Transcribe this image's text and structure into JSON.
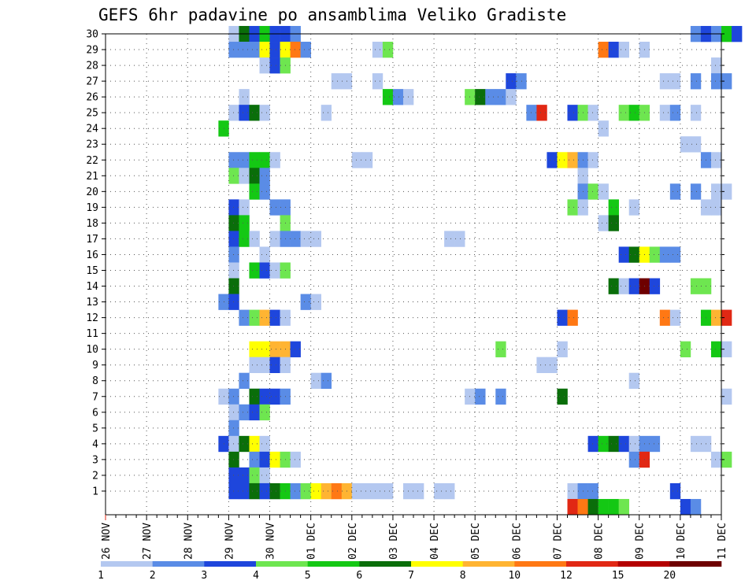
{
  "chart_data": {
    "type": "heatmap",
    "title": "GEFS 6hr padavine po ansamblima Veliko Gradiste",
    "xlabel": "",
    "ylabel": "",
    "x_tick_labels": [
      "26 NOV",
      "27 NOV",
      "28 NOV",
      "29 NOV",
      "30 NOV",
      "01 DEC",
      "02 DEC",
      "03 DEC",
      "04 DEC",
      "05 DEC",
      "06 DEC",
      "07 DEC",
      "08 DEC",
      "09 DEC",
      "10 DEC",
      "11 DEC"
    ],
    "x_range_days": [
      0,
      15
    ],
    "steps_per_day": 4,
    "y_tick_labels": [
      "1",
      "2",
      "3",
      "4",
      "5",
      "6",
      "7",
      "8",
      "9",
      "10",
      "11",
      "12",
      "13",
      "14",
      "15",
      "16",
      "17",
      "18",
      "19",
      "20",
      "21",
      "22",
      "23",
      "24",
      "25",
      "26",
      "27",
      "28",
      "29",
      "30"
    ],
    "y_range": [
      0,
      30
    ],
    "grid": "dotted",
    "colorbar": {
      "labels": [
        "1",
        "2",
        "3",
        "4",
        "5",
        "6",
        "7",
        "8",
        "10",
        "12",
        "15",
        "20"
      ],
      "colors": [
        "#b4c8f0",
        "#5a8ce6",
        "#1e46dc",
        "#6ee650",
        "#14c814",
        "#0a6e0a",
        "#ffff00",
        "#ffb432",
        "#ff7814",
        "#e12814",
        "#b40000",
        "#6e0000"
      ]
    },
    "level_colors": [
      "#b4c8f0",
      "#5a8ce6",
      "#1e46dc",
      "#6ee650",
      "#14c814",
      "#0a6e0a",
      "#ffff00",
      "#ffb432",
      "#ff7814",
      "#e12814",
      "#b40000",
      "#6e0000"
    ],
    "cells_note": "Each entry: [member, time_step_index from 26 NOV 00Z (6-hourly), start_level, run_length, level_step]",
    "cells": [
      [
        30,
        12,
        1,
        1,
        0
      ],
      [
        30,
        13,
        6,
        1,
        0
      ],
      [
        30,
        14,
        3,
        1,
        0
      ],
      [
        30,
        15,
        5,
        1,
        0
      ],
      [
        30,
        16,
        3,
        2,
        0
      ],
      [
        30,
        18,
        2,
        1,
        0
      ],
      [
        30,
        57,
        2,
        1,
        0
      ],
      [
        30,
        58,
        3,
        1,
        0
      ],
      [
        30,
        59,
        2,
        1,
        0
      ],
      [
        30,
        60,
        5,
        1,
        0
      ],
      [
        30,
        61,
        3,
        1,
        0
      ],
      [
        29,
        12,
        2,
        3,
        0
      ],
      [
        29,
        15,
        7,
        1,
        0
      ],
      [
        29,
        16,
        3,
        1,
        0
      ],
      [
        29,
        17,
        7,
        1,
        0
      ],
      [
        29,
        18,
        9,
        1,
        0
      ],
      [
        29,
        19,
        2,
        1,
        0
      ],
      [
        29,
        26,
        1,
        1,
        0
      ],
      [
        29,
        27,
        4,
        1,
        0
      ],
      [
        29,
        48,
        9,
        1,
        0
      ],
      [
        29,
        49,
        3,
        1,
        0
      ],
      [
        29,
        50,
        1,
        1,
        0
      ],
      [
        29,
        52,
        1,
        1,
        0
      ],
      [
        28,
        15,
        1,
        1,
        0
      ],
      [
        28,
        16,
        3,
        1,
        0
      ],
      [
        28,
        17,
        4,
        1,
        0
      ],
      [
        28,
        59,
        1,
        1,
        0
      ],
      [
        27,
        22,
        1,
        2,
        0
      ],
      [
        27,
        26,
        1,
        1,
        0
      ],
      [
        27,
        39,
        3,
        1,
        0
      ],
      [
        27,
        40,
        2,
        1,
        0
      ],
      [
        27,
        54,
        1,
        2,
        0
      ],
      [
        27,
        57,
        2,
        1,
        0
      ],
      [
        27,
        59,
        2,
        2,
        0
      ],
      [
        26,
        13,
        1,
        1,
        0
      ],
      [
        26,
        27,
        5,
        1,
        0
      ],
      [
        26,
        28,
        2,
        1,
        0
      ],
      [
        26,
        29,
        1,
        1,
        0
      ],
      [
        26,
        35,
        4,
        1,
        0
      ],
      [
        26,
        36,
        6,
        1,
        0
      ],
      [
        26,
        37,
        2,
        2,
        0
      ],
      [
        26,
        39,
        1,
        1,
        0
      ],
      [
        25,
        12,
        1,
        1,
        0
      ],
      [
        25,
        13,
        3,
        1,
        0
      ],
      [
        25,
        14,
        6,
        1,
        0
      ],
      [
        25,
        15,
        1,
        1,
        0
      ],
      [
        25,
        21,
        1,
        1,
        0
      ],
      [
        25,
        41,
        2,
        1,
        0
      ],
      [
        25,
        42,
        10,
        1,
        0
      ],
      [
        25,
        45,
        3,
        1,
        0
      ],
      [
        25,
        46,
        4,
        1,
        0
      ],
      [
        25,
        47,
        1,
        1,
        0
      ],
      [
        25,
        50,
        4,
        1,
        0
      ],
      [
        25,
        51,
        5,
        1,
        0
      ],
      [
        25,
        52,
        4,
        1,
        0
      ],
      [
        25,
        54,
        1,
        1,
        0
      ],
      [
        25,
        55,
        2,
        1,
        0
      ],
      [
        25,
        57,
        1,
        1,
        0
      ],
      [
        24,
        11,
        5,
        1,
        0
      ],
      [
        24,
        48,
        1,
        1,
        0
      ],
      [
        23,
        56,
        1,
        2,
        0
      ],
      [
        22,
        12,
        2,
        2,
        0
      ],
      [
        22,
        14,
        5,
        2,
        0
      ],
      [
        22,
        16,
        1,
        1,
        0
      ],
      [
        22,
        24,
        1,
        2,
        0
      ],
      [
        22,
        43,
        3,
        1,
        0
      ],
      [
        22,
        44,
        7,
        1,
        0
      ],
      [
        22,
        45,
        8,
        1,
        0
      ],
      [
        22,
        46,
        2,
        1,
        0
      ],
      [
        22,
        47,
        1,
        1,
        0
      ],
      [
        22,
        58,
        2,
        1,
        0
      ],
      [
        22,
        59,
        1,
        1,
        0
      ],
      [
        21,
        12,
        4,
        1,
        0
      ],
      [
        21,
        13,
        1,
        1,
        0
      ],
      [
        21,
        14,
        6,
        1,
        0
      ],
      [
        21,
        15,
        2,
        1,
        0
      ],
      [
        21,
        46,
        1,
        1,
        0
      ],
      [
        20,
        14,
        5,
        1,
        0
      ],
      [
        20,
        15,
        2,
        1,
        0
      ],
      [
        20,
        46,
        2,
        1,
        0
      ],
      [
        20,
        47,
        4,
        1,
        0
      ],
      [
        20,
        48,
        1,
        1,
        0
      ],
      [
        20,
        55,
        2,
        1,
        0
      ],
      [
        20,
        57,
        2,
        1,
        0
      ],
      [
        20,
        59,
        1,
        2,
        0
      ],
      [
        19,
        12,
        3,
        1,
        0
      ],
      [
        19,
        13,
        1,
        1,
        0
      ],
      [
        19,
        16,
        2,
        2,
        0
      ],
      [
        19,
        45,
        4,
        1,
        0
      ],
      [
        19,
        46,
        1,
        1,
        0
      ],
      [
        19,
        49,
        5,
        1,
        0
      ],
      [
        19,
        51,
        1,
        1,
        0
      ],
      [
        19,
        58,
        1,
        2,
        0
      ],
      [
        18,
        12,
        6,
        1,
        0
      ],
      [
        18,
        13,
        5,
        1,
        0
      ],
      [
        18,
        17,
        4,
        1,
        0
      ],
      [
        18,
        48,
        1,
        1,
        0
      ],
      [
        18,
        49,
        6,
        1,
        0
      ],
      [
        17,
        12,
        3,
        1,
        0
      ],
      [
        17,
        13,
        5,
        1,
        0
      ],
      [
        17,
        14,
        1,
        1,
        0
      ],
      [
        17,
        16,
        1,
        1,
        0
      ],
      [
        17,
        17,
        2,
        2,
        0
      ],
      [
        17,
        19,
        1,
        2,
        0
      ],
      [
        17,
        33,
        1,
        2,
        0
      ],
      [
        16,
        12,
        2,
        1,
        0
      ],
      [
        16,
        15,
        1,
        1,
        0
      ],
      [
        16,
        50,
        3,
        1,
        0
      ],
      [
        16,
        51,
        6,
        1,
        0
      ],
      [
        16,
        52,
        7,
        1,
        0
      ],
      [
        16,
        53,
        4,
        1,
        0
      ],
      [
        16,
        54,
        2,
        2,
        0
      ],
      [
        15,
        12,
        1,
        1,
        0
      ],
      [
        15,
        14,
        5,
        1,
        0
      ],
      [
        15,
        15,
        3,
        1,
        0
      ],
      [
        15,
        16,
        1,
        1,
        0
      ],
      [
        15,
        17,
        4,
        1,
        0
      ],
      [
        14,
        12,
        6,
        1,
        0
      ],
      [
        14,
        49,
        6,
        1,
        0
      ],
      [
        14,
        50,
        1,
        1,
        0
      ],
      [
        14,
        51,
        3,
        1,
        0
      ],
      [
        14,
        52,
        12,
        1,
        0
      ],
      [
        14,
        53,
        3,
        1,
        0
      ],
      [
        14,
        57,
        4,
        2,
        0
      ],
      [
        13,
        11,
        2,
        1,
        0
      ],
      [
        13,
        12,
        3,
        1,
        0
      ],
      [
        13,
        19,
        2,
        1,
        0
      ],
      [
        13,
        20,
        1,
        1,
        0
      ],
      [
        12,
        13,
        2,
        1,
        0
      ],
      [
        12,
        14,
        4,
        1,
        0
      ],
      [
        12,
        15,
        8,
        1,
        0
      ],
      [
        12,
        16,
        3,
        1,
        0
      ],
      [
        12,
        17,
        1,
        1,
        0
      ],
      [
        12,
        44,
        3,
        1,
        0
      ],
      [
        12,
        45,
        9,
        1,
        0
      ],
      [
        12,
        54,
        9,
        1,
        0
      ],
      [
        12,
        55,
        1,
        1,
        0
      ],
      [
        12,
        58,
        5,
        1,
        0
      ],
      [
        12,
        59,
        8,
        1,
        0
      ],
      [
        12,
        60,
        10,
        1,
        0
      ],
      [
        10,
        14,
        7,
        2,
        0
      ],
      [
        10,
        16,
        8,
        2,
        0
      ],
      [
        10,
        18,
        3,
        1,
        0
      ],
      [
        10,
        38,
        4,
        1,
        0
      ],
      [
        10,
        44,
        1,
        1,
        0
      ],
      [
        10,
        56,
        4,
        1,
        0
      ],
      [
        10,
        59,
        5,
        1,
        0
      ],
      [
        10,
        60,
        1,
        1,
        0
      ],
      [
        9,
        14,
        1,
        2,
        0
      ],
      [
        9,
        16,
        3,
        1,
        0
      ],
      [
        9,
        17,
        1,
        1,
        0
      ],
      [
        9,
        42,
        1,
        2,
        0
      ],
      [
        8,
        13,
        2,
        1,
        0
      ],
      [
        8,
        20,
        1,
        1,
        0
      ],
      [
        8,
        21,
        2,
        1,
        0
      ],
      [
        8,
        51,
        1,
        1,
        0
      ],
      [
        7,
        11,
        1,
        1,
        0
      ],
      [
        7,
        12,
        2,
        1,
        0
      ],
      [
        7,
        14,
        6,
        1,
        0
      ],
      [
        7,
        15,
        3,
        2,
        0
      ],
      [
        7,
        17,
        2,
        1,
        0
      ],
      [
        7,
        35,
        1,
        1,
        0
      ],
      [
        7,
        36,
        2,
        1,
        0
      ],
      [
        7,
        38,
        2,
        1,
        0
      ],
      [
        7,
        44,
        6,
        1,
        0
      ],
      [
        7,
        60,
        1,
        1,
        0
      ],
      [
        6,
        12,
        1,
        1,
        0
      ],
      [
        6,
        13,
        2,
        1,
        0
      ],
      [
        6,
        14,
        3,
        1,
        0
      ],
      [
        6,
        15,
        4,
        1,
        0
      ],
      [
        5,
        12,
        2,
        1,
        0
      ],
      [
        4,
        11,
        3,
        1,
        0
      ],
      [
        4,
        12,
        1,
        1,
        0
      ],
      [
        4,
        13,
        6,
        1,
        0
      ],
      [
        4,
        14,
        7,
        1,
        0
      ],
      [
        4,
        15,
        1,
        1,
        0
      ],
      [
        4,
        47,
        3,
        1,
        0
      ],
      [
        4,
        48,
        5,
        1,
        0
      ],
      [
        4,
        49,
        6,
        1,
        0
      ],
      [
        4,
        50,
        3,
        1,
        0
      ],
      [
        4,
        51,
        1,
        1,
        0
      ],
      [
        4,
        52,
        2,
        2,
        0
      ],
      [
        4,
        57,
        1,
        2,
        0
      ],
      [
        3,
        12,
        6,
        1,
        0
      ],
      [
        3,
        14,
        2,
        1,
        0
      ],
      [
        3,
        15,
        3,
        1,
        0
      ],
      [
        3,
        16,
        7,
        1,
        0
      ],
      [
        3,
        17,
        4,
        1,
        0
      ],
      [
        3,
        18,
        1,
        1,
        0
      ],
      [
        3,
        51,
        2,
        1,
        0
      ],
      [
        3,
        52,
        10,
        1,
        0
      ],
      [
        3,
        59,
        1,
        1,
        0
      ],
      [
        3,
        60,
        4,
        1,
        0
      ],
      [
        2,
        12,
        3,
        2,
        0
      ],
      [
        2,
        14,
        4,
        1,
        0
      ],
      [
        2,
        15,
        1,
        1,
        0
      ],
      [
        1,
        12,
        3,
        2,
        0
      ],
      [
        1,
        14,
        6,
        1,
        0
      ],
      [
        1,
        15,
        3,
        1,
        0
      ],
      [
        1,
        16,
        6,
        1,
        0
      ],
      [
        1,
        17,
        5,
        1,
        0
      ],
      [
        1,
        18,
        2,
        1,
        0
      ],
      [
        1,
        19,
        4,
        1,
        0
      ],
      [
        1,
        20,
        7,
        1,
        0
      ],
      [
        1,
        21,
        8,
        1,
        0
      ],
      [
        1,
        22,
        9,
        1,
        0
      ],
      [
        1,
        23,
        8,
        1,
        0
      ],
      [
        1,
        24,
        1,
        4,
        0
      ],
      [
        1,
        29,
        1,
        2,
        0
      ],
      [
        1,
        32,
        1,
        2,
        0
      ],
      [
        1,
        45,
        1,
        1,
        0
      ],
      [
        1,
        46,
        2,
        2,
        0
      ],
      [
        1,
        55,
        3,
        1,
        0
      ],
      [
        0,
        45,
        10,
        1,
        0
      ],
      [
        0,
        46,
        9,
        1,
        0
      ],
      [
        0,
        47,
        6,
        1,
        0
      ],
      [
        0,
        48,
        5,
        2,
        0
      ],
      [
        0,
        50,
        4,
        1,
        0
      ],
      [
        0,
        56,
        3,
        1,
        0
      ],
      [
        0,
        57,
        2,
        1,
        0
      ]
    ]
  }
}
